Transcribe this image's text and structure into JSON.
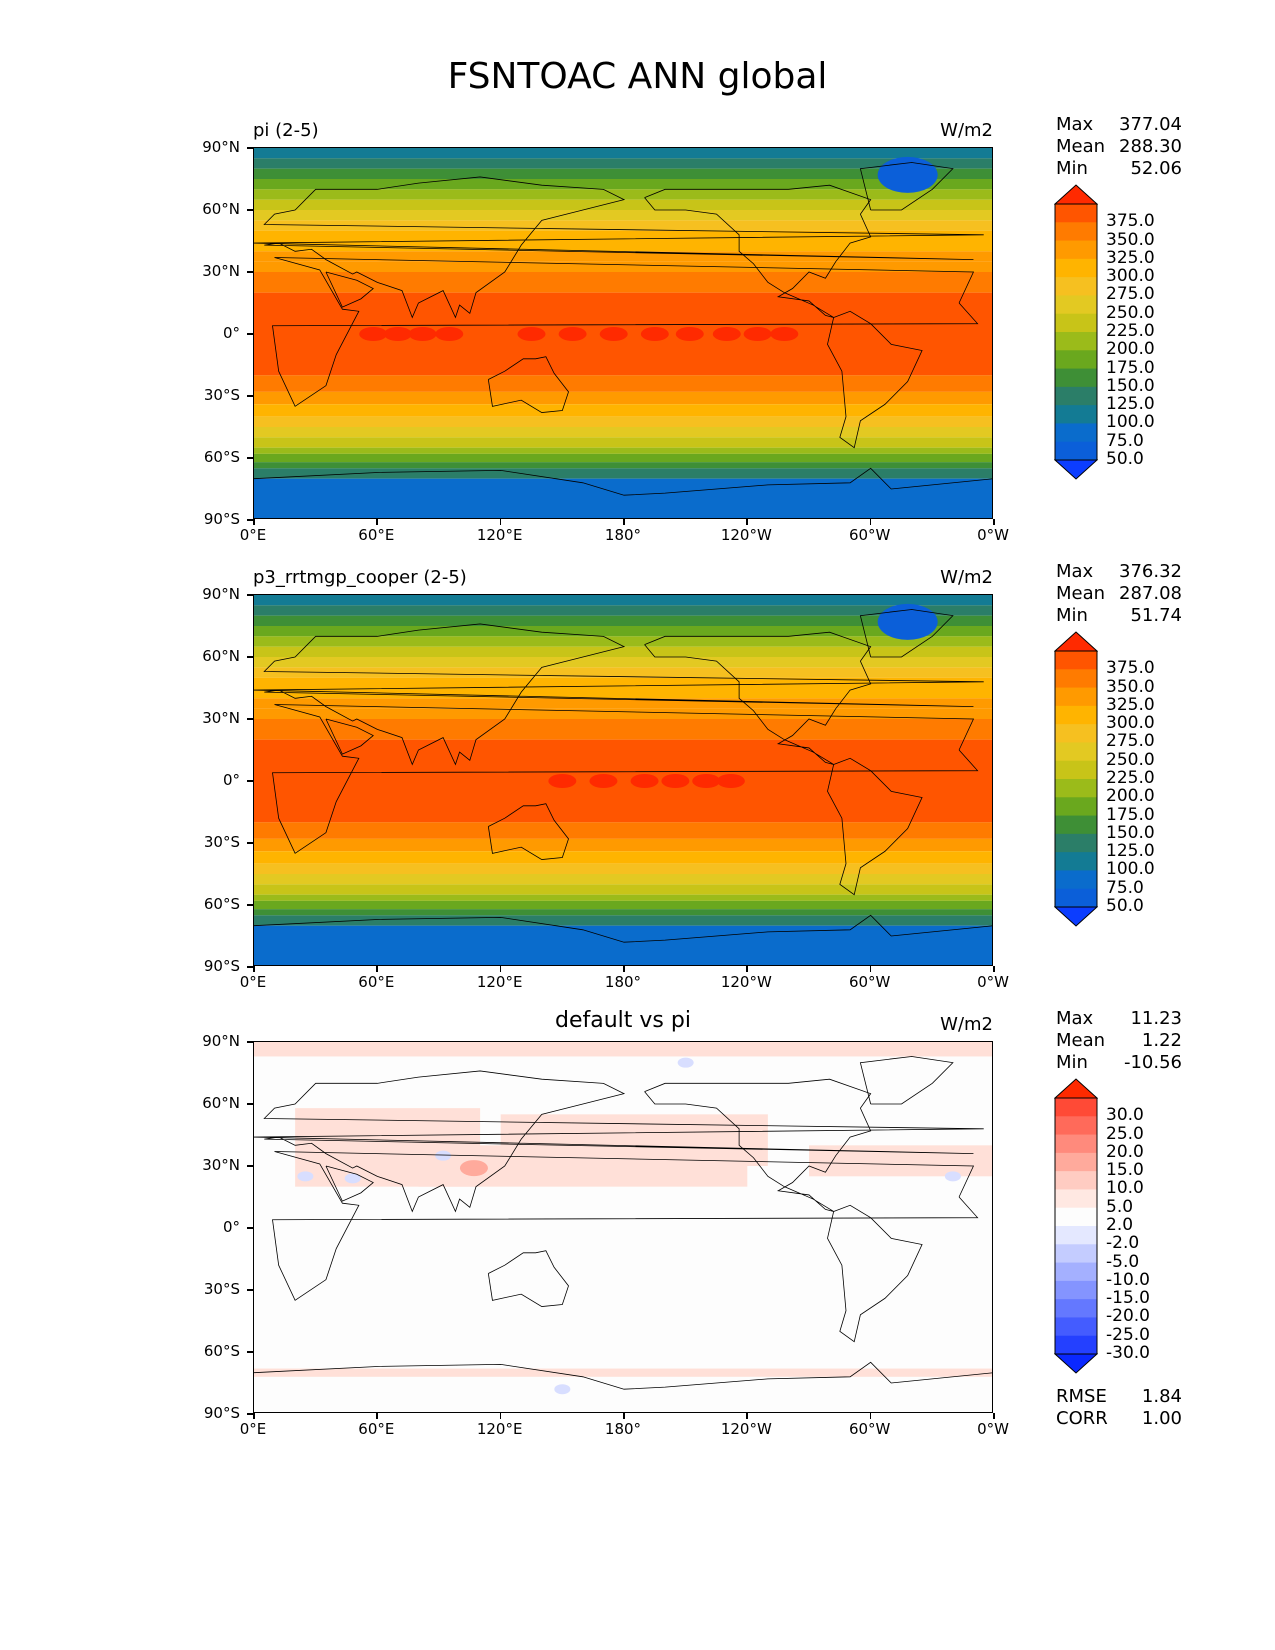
{
  "title": "FSNTOAC ANN global",
  "lat_labels": [
    "90°N",
    "60°N",
    "30°N",
    "0°",
    "30°S",
    "60°S",
    "90°S"
  ],
  "lon_labels": [
    "0°E",
    "60°E",
    "120°E",
    "180°",
    "120°W",
    "60°W",
    "0°W"
  ],
  "panels": [
    {
      "title": "pi (2-5)",
      "units": "W/m2",
      "stats": {
        "max_label": "Max",
        "max": "377.04",
        "mean_label": "Mean",
        "mean": "288.30",
        "min_label": "Min",
        "min": "52.06"
      },
      "colorbar_levels": [
        "375.0",
        "350.0",
        "325.0",
        "300.0",
        "275.0",
        "250.0",
        "225.0",
        "200.0",
        "175.0",
        "150.0",
        "125.0",
        "100.0",
        "75.0",
        "50.0"
      ],
      "colors": [
        "#ff2a00",
        "#ff5500",
        "#ff7b00",
        "#ff9a00",
        "#ffb400",
        "#f6c020",
        "#e3c922",
        "#c8c418",
        "#9bbb1a",
        "#6aa81e",
        "#3e8f36",
        "#2b7e68",
        "#137b94",
        "#0a6ccc",
        "#0b5fd9",
        "#0c3dff"
      ]
    },
    {
      "title": "p3_rrtmgp_cooper (2-5)",
      "units": "W/m2",
      "stats": {
        "max_label": "Max",
        "max": "376.32",
        "mean_label": "Mean",
        "mean": "287.08",
        "min_label": "Min",
        "min": "51.74"
      },
      "colorbar_levels": [
        "375.0",
        "350.0",
        "325.0",
        "300.0",
        "275.0",
        "250.0",
        "225.0",
        "200.0",
        "175.0",
        "150.0",
        "125.0",
        "100.0",
        "75.0",
        "50.0"
      ],
      "colors": [
        "#ff2a00",
        "#ff5500",
        "#ff7b00",
        "#ff9a00",
        "#ffb400",
        "#f6c020",
        "#e3c922",
        "#c8c418",
        "#9bbb1a",
        "#6aa81e",
        "#3e8f36",
        "#2b7e68",
        "#137b94",
        "#0a6ccc",
        "#0b5fd9",
        "#0c3dff"
      ]
    },
    {
      "title": "default vs pi",
      "units": "W/m2",
      "stats": {
        "max_label": "Max",
        "max": "11.23",
        "mean_label": "Mean",
        "mean": "1.22",
        "min_label": "Min",
        "min": "-10.56"
      },
      "colorbar_levels": [
        "30.0",
        "25.0",
        "20.0",
        "15.0",
        "10.0",
        "5.0",
        "2.0",
        "-2.0",
        "-5.0",
        "-10.0",
        "-15.0",
        "-20.0",
        "-25.0",
        "-30.0"
      ],
      "colors": [
        "#ff2a00",
        "#ff4a36",
        "#ff6a5a",
        "#ff8a7c",
        "#ffaa9c",
        "#ffccc2",
        "#ffe8e2",
        "#fdfdfd",
        "#e4e8ff",
        "#c4ccff",
        "#a4b0ff",
        "#8494ff",
        "#6478ff",
        "#445cff",
        "#2440ff",
        "#0a28ff"
      ],
      "extra": {
        "rmse_label": "RMSE",
        "rmse": "1.84",
        "corr_label": "CORR",
        "corr": "1.00"
      }
    }
  ]
}
